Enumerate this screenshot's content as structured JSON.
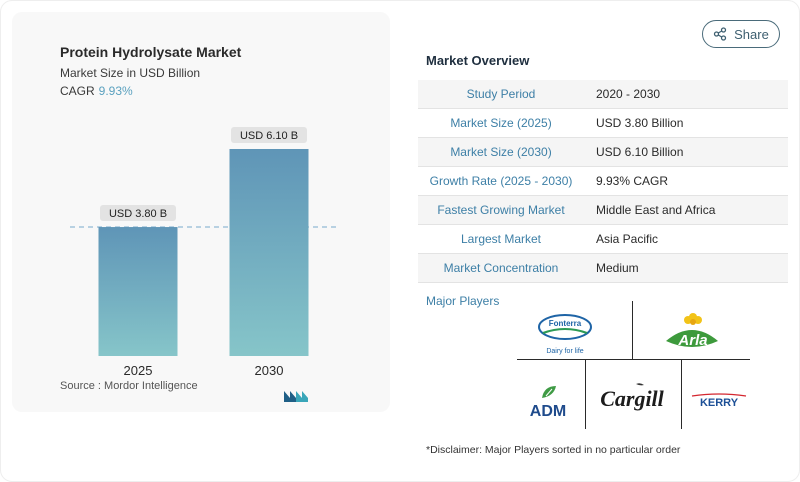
{
  "share": {
    "label": "Share",
    "icon": "share-icon"
  },
  "chart": {
    "title": "Protein Hydrolysate Market",
    "subtitle": "Market Size in USD Billion",
    "cagr_label": "CAGR",
    "cagr_value": "9.93%",
    "source_label": "Source :",
    "source_value": "Mordor Intelligence"
  },
  "chart_data": {
    "type": "bar",
    "title": "Protein Hydrolysate Market",
    "categories": [
      "2025",
      "2030"
    ],
    "values": [
      3.8,
      6.1
    ],
    "data_labels": [
      "USD 3.80 B",
      "USD 6.10 B"
    ],
    "ylabel": "Market Size in USD Billion",
    "ylim": [
      0,
      6.1
    ],
    "reference_line": 3.8,
    "grid": false,
    "colors": {
      "bar_top": "#5f95b7",
      "bar_bottom": "#86c5c9",
      "label_bg": "#e3e3e3",
      "ref_line": "#78aacb"
    }
  },
  "overview": {
    "title": "Market Overview",
    "rows": [
      {
        "label": "Study Period",
        "value": "2020 - 2030"
      },
      {
        "label": "Market Size (2025)",
        "value": "USD 3.80 Billion"
      },
      {
        "label": "Market Size (2030)",
        "value": "USD 6.10 Billion"
      },
      {
        "label": "Growth Rate (2025 - 2030)",
        "value": "9.93% CAGR"
      },
      {
        "label": "Fastest Growing Market",
        "value": "Middle East and Africa"
      },
      {
        "label": "Largest Market",
        "value": "Asia Pacific"
      },
      {
        "label": "Market Concentration",
        "value": "Medium"
      }
    ]
  },
  "players": {
    "title": "Major Players",
    "logos": [
      {
        "name": "Fonterra",
        "tagline": "Dairy for life"
      },
      {
        "name": "Arla"
      },
      {
        "name": "ADM"
      },
      {
        "name": "Cargill"
      },
      {
        "name": "KERRY"
      }
    ]
  },
  "disclaimer": "*Disclaimer: Major Players sorted in no particular order",
  "colors": {
    "accent": "#3d7fa6",
    "cagr": "#5aa1bf"
  }
}
